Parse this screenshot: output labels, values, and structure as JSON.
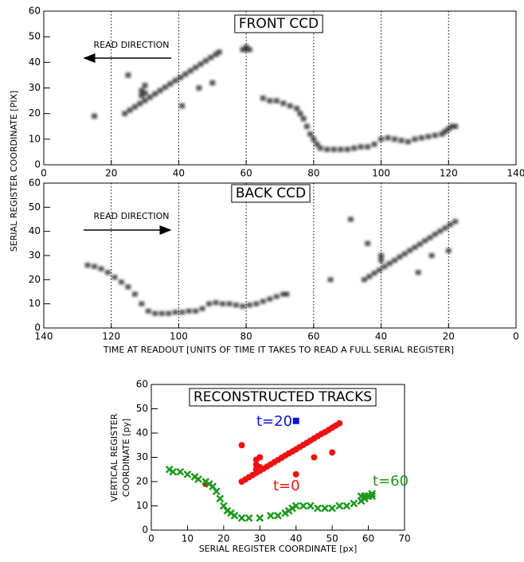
{
  "chart_data": [
    {
      "type": "image",
      "title": "FRONT CCD",
      "ylabel": "SERIAL REGISTER COORDINATE [PIX]",
      "annotation": "READ DIRECTION",
      "xlim": [
        0,
        140
      ],
      "xticks": [
        0,
        20,
        40,
        60,
        80,
        100,
        120,
        140
      ],
      "ylim": [
        0,
        60
      ],
      "yticks": [
        0,
        10,
        20,
        30,
        40,
        50,
        60
      ],
      "vlines": [
        20,
        40,
        60,
        80,
        100,
        120
      ],
      "series": [
        {
          "color": "#333333",
          "x": [
            24,
            25.5,
            27,
            28.5,
            30,
            31.5,
            33,
            34.5,
            36,
            37.5,
            39,
            40.5,
            42,
            43.5,
            45,
            46.5,
            48,
            49.5,
            51,
            52,
            29,
            29,
            30,
            30,
            15,
            25,
            41,
            46,
            50,
            59,
            60,
            61,
            60,
            65,
            67,
            69,
            71,
            73,
            75,
            76,
            77,
            78,
            79,
            80,
            81,
            82,
            84,
            86,
            88,
            90,
            92,
            94,
            96,
            98,
            100,
            102,
            104,
            106,
            108,
            110,
            112,
            114,
            116,
            118,
            119,
            120,
            121,
            122
          ],
          "values": [
            20,
            21.3,
            22.6,
            23.9,
            25.1,
            26.4,
            27.7,
            29,
            30.3,
            31.6,
            32.9,
            34.1,
            35.4,
            36.7,
            38,
            39.3,
            40.6,
            41.9,
            43.1,
            44,
            27,
            29,
            31,
            28,
            19,
            35,
            23,
            30,
            32,
            45,
            45,
            45,
            46,
            26,
            25,
            25,
            24,
            23,
            22,
            20,
            18,
            15,
            12,
            10,
            8,
            6.5,
            6,
            6,
            6,
            6,
            6.5,
            7,
            7,
            8,
            10,
            10.5,
            10,
            9.5,
            9,
            10,
            10.5,
            11,
            11.5,
            12,
            13,
            14,
            15,
            15
          ]
        }
      ]
    },
    {
      "type": "image",
      "title": "BACK CCD",
      "xlabel": "TIME AT READOUT [UNITS OF TIME IT TAKES TO READ A FULL SERIAL REGISTER]",
      "annotation": "READ DIRECTION",
      "xlim": [
        140,
        0
      ],
      "xticks": [
        140,
        120,
        100,
        80,
        60,
        40,
        20,
        0
      ],
      "ylim": [
        0,
        60
      ],
      "yticks": [
        0,
        10,
        20,
        30,
        40,
        50,
        60
      ],
      "vlines": [
        120,
        100,
        80,
        60,
        40,
        20
      ],
      "series": [
        {
          "color": "#333333",
          "x": [
            127,
            125,
            123,
            121,
            119,
            117,
            115,
            113,
            111,
            109,
            107,
            105,
            103,
            101,
            99,
            97,
            95,
            93,
            91,
            89,
            87,
            85,
            83,
            81,
            79,
            77,
            75,
            73,
            71,
            69,
            68,
            45,
            43.5,
            42,
            40.5,
            39,
            37.5,
            36,
            34.5,
            33,
            31.5,
            30,
            28.5,
            27,
            25.5,
            24,
            22.5,
            21,
            19.5,
            18,
            40,
            40,
            55,
            49,
            44,
            29,
            25,
            20
          ],
          "values": [
            26,
            25.5,
            24.5,
            23,
            21,
            19,
            17,
            14,
            10,
            7,
            6,
            6,
            6,
            6.5,
            6.5,
            7,
            7,
            8,
            10,
            10.5,
            10,
            10,
            9.5,
            9,
            9.5,
            10,
            11,
            12,
            13,
            14,
            14,
            20,
            21.3,
            22.7,
            24,
            25.4,
            26.7,
            28,
            29.4,
            30.7,
            32.1,
            33.4,
            34.7,
            36.1,
            37.4,
            38.8,
            40.1,
            41.4,
            42.8,
            44.1,
            28,
            30,
            20,
            45,
            35,
            23,
            30,
            32
          ]
        }
      ]
    },
    {
      "type": "scatter",
      "title": "RECONSTRUCTED TRACKS",
      "xlabel": "SERIAL REGISTER COORDINATE [px]",
      "ylabel": [
        "VERTICAL REGISTER",
        "COORDINATE [py]"
      ],
      "xlim": [
        0,
        70
      ],
      "xticks": [
        0,
        10,
        20,
        30,
        40,
        50,
        60,
        70
      ],
      "ylim": [
        0,
        60
      ],
      "yticks": [
        0,
        10,
        20,
        30,
        40,
        50,
        60
      ],
      "series": [
        {
          "name": "t=0",
          "color": "#ee1111",
          "marker": "circle",
          "x": [
            25,
            26,
            27,
            28,
            29,
            30,
            31,
            32,
            33,
            34,
            35,
            36,
            37,
            38,
            39,
            40,
            41,
            42,
            43,
            44,
            45,
            46,
            47,
            48,
            49,
            50,
            51,
            52,
            29,
            29,
            29,
            30,
            30,
            15,
            25,
            40,
            45,
            50
          ],
          "values": [
            20,
            20.9,
            21.8,
            22.7,
            23.6,
            24.4,
            25.3,
            26.2,
            27.1,
            28,
            28.9,
            29.8,
            30.7,
            31.6,
            32.4,
            33.3,
            34.2,
            35.1,
            36,
            36.9,
            37.8,
            38.7,
            39.6,
            40.4,
            41.3,
            42.2,
            43.1,
            44,
            25,
            27,
            29,
            30,
            26,
            19,
            35,
            23,
            30,
            32
          ]
        },
        {
          "name": "t=60",
          "color": "#1a9a1a",
          "marker": "x",
          "x": [
            5,
            6,
            8,
            10,
            12,
            13,
            15,
            16,
            17,
            18,
            19,
            20,
            21,
            22,
            23,
            25,
            27,
            30,
            33,
            35,
            37,
            38,
            39,
            40,
            42,
            44,
            46,
            48,
            50,
            52,
            54,
            56,
            58,
            58,
            59,
            59,
            60,
            61,
            61
          ],
          "values": [
            25,
            24,
            24,
            23,
            22,
            21,
            20,
            19,
            18,
            16,
            13,
            10,
            8,
            7,
            6,
            5,
            5,
            5,
            6,
            6,
            7,
            8,
            9,
            10,
            10,
            10,
            9,
            9,
            9,
            10,
            10,
            11,
            12,
            14,
            13,
            14,
            14,
            14,
            15
          ]
        },
        {
          "name": "t=20",
          "color": "#1010dd",
          "marker": "square",
          "x": [
            40
          ],
          "values": [
            45
          ]
        }
      ]
    }
  ]
}
